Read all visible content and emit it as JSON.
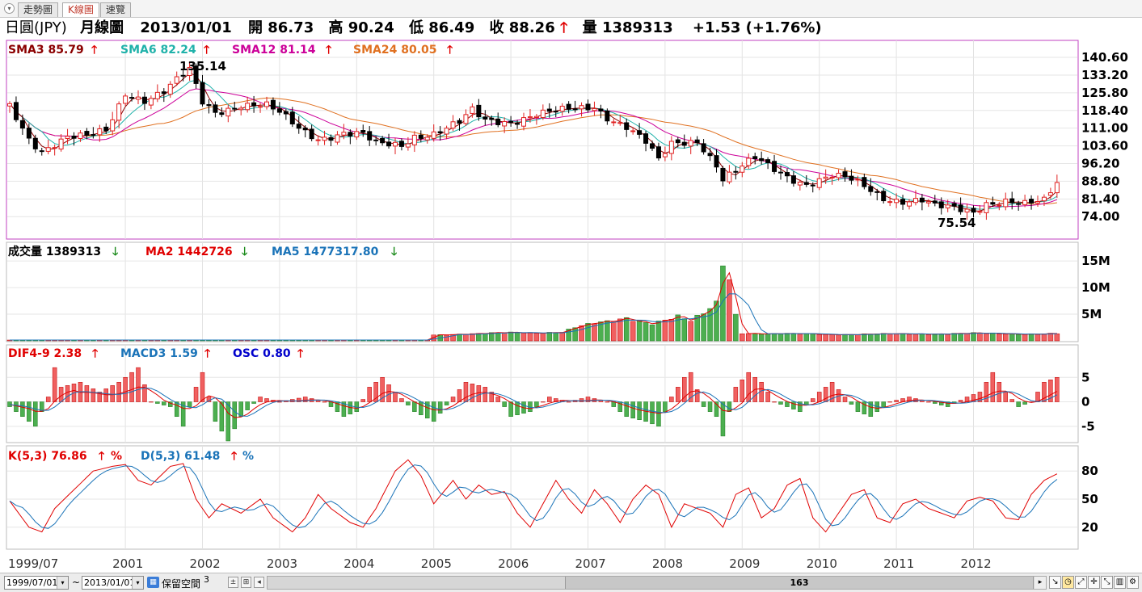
{
  "tabs": [
    {
      "label": "走勢圖",
      "active": false
    },
    {
      "label": "K線圖",
      "active": true
    },
    {
      "label": "速覽",
      "active": false
    }
  ],
  "header": {
    "symbol": "日圓(JPY)",
    "chart_kind": "月線圖",
    "date": "2013/01/01",
    "open_label": "開",
    "open": "86.73",
    "high_label": "高",
    "high": "90.24",
    "low_label": "低",
    "low": "86.49",
    "close_label": "收",
    "close": "88.26",
    "close_arrow": "🡑",
    "volume_label": "量",
    "volume": "1389313",
    "change": "+1.53 (+1.76%)"
  },
  "legends": {
    "price": [
      {
        "text": "SMA3 85.79",
        "color": "#8b0000"
      },
      {
        "text": "SMA6 82.24",
        "color": "#20b2aa"
      },
      {
        "text": "SMA12 81.14",
        "color": "#cc0099"
      },
      {
        "text": "SMA24 80.05",
        "color": "#e07020"
      }
    ],
    "volume": [
      {
        "text": "成交量 1389313",
        "color": "#000000"
      },
      {
        "text": "MA2 1442726",
        "color": "#e00000"
      },
      {
        "text": "MA5 1477317.80",
        "color": "#1a73b8"
      }
    ],
    "macd": [
      {
        "text": "DIF4-9 2.38",
        "color": "#e00000"
      },
      {
        "text": "MACD3 1.59",
        "color": "#1a73b8"
      },
      {
        "text": "OSC 0.80",
        "color": "#0000cc"
      }
    ],
    "kd": [
      {
        "text": "K(5,3) 76.86",
        "color": "#e00000"
      },
      {
        "text": "D(5,3) 61.48",
        "color": "#1a73b8"
      }
    ],
    "up_arrow": "🡑",
    "down_arrow": "🡓",
    "percent": "%"
  },
  "chart_data": {
    "type": "candlestick",
    "price_axis": {
      "ticks": [
        "140.60",
        "133.20",
        "125.80",
        "118.40",
        "111.00",
        "103.60",
        "96.20",
        "88.80",
        "81.40",
        "74.00"
      ],
      "range": [
        68,
        145
      ]
    },
    "annotations": {
      "max_label": "135.14",
      "min_label": "75.54"
    },
    "x_labels": [
      "1999/07",
      "2001",
      "2002",
      "2003",
      "2004",
      "2005",
      "2006",
      "2007",
      "2008",
      "2009",
      "2010",
      "2011",
      "2012"
    ],
    "x_label_months": [
      0,
      18,
      30,
      42,
      54,
      66,
      78,
      90,
      102,
      114,
      126,
      138,
      150
    ],
    "volume_axis": {
      "ticks": [
        "15M",
        "10M",
        "5M"
      ],
      "values": [
        15000000,
        10000000,
        5000000
      ],
      "max": 17000000
    },
    "macd_axis": {
      "ticks": [
        "5",
        "0",
        "-5"
      ],
      "values": [
        5,
        0,
        -5
      ],
      "range": [
        -8,
        9.5
      ]
    },
    "kd_axis": {
      "ticks": [
        "80",
        "50",
        "20"
      ],
      "values": [
        80,
        50,
        20
      ],
      "range": [
        0,
        100
      ]
    },
    "anchors": [
      [
        0,
        120
      ],
      [
        3,
        107
      ],
      [
        5,
        102
      ],
      [
        9,
        107
      ],
      [
        12,
        107
      ],
      [
        15,
        110
      ],
      [
        18,
        126
      ],
      [
        21,
        123
      ],
      [
        24,
        126
      ],
      [
        27,
        133
      ],
      [
        28,
        135
      ],
      [
        30,
        122
      ],
      [
        32,
        118
      ],
      [
        36,
        121
      ],
      [
        40,
        120
      ],
      [
        42,
        117
      ],
      [
        45,
        111
      ],
      [
        48,
        107
      ],
      [
        52,
        109
      ],
      [
        55,
        108
      ],
      [
        57,
        104
      ],
      [
        61,
        104
      ],
      [
        63,
        108
      ],
      [
        66,
        109
      ],
      [
        70,
        113
      ],
      [
        72,
        118
      ],
      [
        74,
        114
      ],
      [
        78,
        114
      ],
      [
        82,
        117
      ],
      [
        86,
        118
      ],
      [
        89,
        119
      ],
      [
        91,
        120
      ],
      [
        93,
        116
      ],
      [
        96,
        112
      ],
      [
        99,
        105
      ],
      [
        101,
        97
      ],
      [
        103,
        104
      ],
      [
        107,
        106
      ],
      [
        108,
        103
      ],
      [
        110,
        96
      ],
      [
        111,
        90
      ],
      [
        113,
        93
      ],
      [
        116,
        98
      ],
      [
        118,
        95
      ],
      [
        121,
        91
      ],
      [
        124,
        88
      ],
      [
        128,
        91
      ],
      [
        131,
        89
      ],
      [
        134,
        85
      ],
      [
        136,
        82
      ],
      [
        139,
        81
      ],
      [
        142,
        81
      ],
      [
        144,
        78
      ],
      [
        147,
        77
      ],
      [
        150,
        76
      ],
      [
        152,
        80
      ],
      [
        155,
        81
      ],
      [
        158,
        79
      ],
      [
        161,
        80
      ],
      [
        163,
        88
      ]
    ],
    "volume_anchors": [
      [
        0,
        150000
      ],
      [
        65,
        150000
      ],
      [
        66,
        1100000
      ],
      [
        70,
        1300000
      ],
      [
        74,
        1400000
      ],
      [
        78,
        1500000
      ],
      [
        82,
        1500000
      ],
      [
        86,
        1700000
      ],
      [
        88,
        2600000
      ],
      [
        91,
        3200000
      ],
      [
        94,
        3600000
      ],
      [
        96,
        4300000
      ],
      [
        98,
        3800000
      ],
      [
        100,
        3400000
      ],
      [
        102,
        4000000
      ],
      [
        104,
        4500000
      ],
      [
        106,
        3600000
      ],
      [
        108,
        5000000
      ],
      [
        110,
        7000000
      ],
      [
        111,
        15000000
      ],
      [
        112,
        12000000
      ],
      [
        113,
        5000000
      ],
      [
        114,
        1500000
      ],
      [
        118,
        1300000
      ],
      [
        125,
        1300000
      ],
      [
        130,
        1200000
      ],
      [
        140,
        1300000
      ],
      [
        150,
        1400000
      ],
      [
        156,
        1300000
      ],
      [
        163,
        1389313
      ]
    ],
    "macd_osc_anchors": [
      [
        0,
        -1
      ],
      [
        2,
        -3
      ],
      [
        4,
        -5
      ],
      [
        6,
        1
      ],
      [
        7,
        7
      ],
      [
        8,
        3
      ],
      [
        11,
        4
      ],
      [
        14,
        2
      ],
      [
        17,
        4
      ],
      [
        19,
        6
      ],
      [
        20,
        7
      ],
      [
        22,
        0
      ],
      [
        25,
        -1
      ],
      [
        27,
        -5
      ],
      [
        29,
        3
      ],
      [
        30,
        6
      ],
      [
        32,
        -4
      ],
      [
        34,
        -8
      ],
      [
        36,
        -3
      ],
      [
        39,
        1
      ],
      [
        42,
        0
      ],
      [
        46,
        1
      ],
      [
        49,
        0
      ],
      [
        52,
        -3
      ],
      [
        54,
        -2
      ],
      [
        56,
        3
      ],
      [
        58,
        5
      ],
      [
        60,
        2
      ],
      [
        63,
        -2
      ],
      [
        66,
        -4
      ],
      [
        69,
        1
      ],
      [
        71,
        4
      ],
      [
        74,
        3
      ],
      [
        76,
        1
      ],
      [
        78,
        -3
      ],
      [
        81,
        -2
      ],
      [
        84,
        1
      ],
      [
        87,
        0
      ],
      [
        90,
        1
      ],
      [
        93,
        0
      ],
      [
        96,
        -3
      ],
      [
        99,
        -4
      ],
      [
        101,
        -5
      ],
      [
        103,
        1
      ],
      [
        105,
        5
      ],
      [
        106,
        6
      ],
      [
        108,
        -1
      ],
      [
        110,
        -3
      ],
      [
        111,
        -7
      ],
      [
        113,
        3
      ],
      [
        115,
        6
      ],
      [
        117,
        4
      ],
      [
        119,
        0
      ],
      [
        121,
        -1
      ],
      [
        123,
        -2
      ],
      [
        126,
        2
      ],
      [
        128,
        4
      ],
      [
        130,
        1
      ],
      [
        132,
        -2
      ],
      [
        134,
        -3
      ],
      [
        137,
        0
      ],
      [
        140,
        1
      ],
      [
        143,
        0
      ],
      [
        146,
        -1
      ],
      [
        149,
        1
      ],
      [
        151,
        2
      ],
      [
        153,
        6
      ],
      [
        155,
        2
      ],
      [
        157,
        -1
      ],
      [
        159,
        0
      ],
      [
        161,
        4
      ],
      [
        163,
        5
      ]
    ],
    "k_anchors": [
      [
        0,
        48
      ],
      [
        3,
        20
      ],
      [
        5,
        15
      ],
      [
        7,
        40
      ],
      [
        10,
        60
      ],
      [
        13,
        80
      ],
      [
        16,
        85
      ],
      [
        18,
        87
      ],
      [
        20,
        70
      ],
      [
        22,
        65
      ],
      [
        25,
        85
      ],
      [
        27,
        88
      ],
      [
        29,
        50
      ],
      [
        31,
        30
      ],
      [
        33,
        45
      ],
      [
        36,
        35
      ],
      [
        39,
        50
      ],
      [
        41,
        30
      ],
      [
        44,
        15
      ],
      [
        46,
        30
      ],
      [
        48,
        55
      ],
      [
        50,
        40
      ],
      [
        53,
        25
      ],
      [
        55,
        20
      ],
      [
        57,
        40
      ],
      [
        60,
        80
      ],
      [
        62,
        92
      ],
      [
        64,
        75
      ],
      [
        66,
        45
      ],
      [
        69,
        70
      ],
      [
        71,
        50
      ],
      [
        73,
        65
      ],
      [
        75,
        55
      ],
      [
        77,
        58
      ],
      [
        79,
        35
      ],
      [
        81,
        20
      ],
      [
        83,
        45
      ],
      [
        85,
        70
      ],
      [
        87,
        50
      ],
      [
        89,
        35
      ],
      [
        91,
        60
      ],
      [
        93,
        45
      ],
      [
        95,
        25
      ],
      [
        97,
        50
      ],
      [
        99,
        65
      ],
      [
        101,
        55
      ],
      [
        103,
        20
      ],
      [
        105,
        45
      ],
      [
        107,
        40
      ],
      [
        109,
        35
      ],
      [
        111,
        20
      ],
      [
        113,
        55
      ],
      [
        115,
        62
      ],
      [
        117,
        30
      ],
      [
        119,
        40
      ],
      [
        121,
        65
      ],
      [
        123,
        72
      ],
      [
        125,
        30
      ],
      [
        127,
        15
      ],
      [
        129,
        35
      ],
      [
        131,
        55
      ],
      [
        133,
        60
      ],
      [
        135,
        30
      ],
      [
        137,
        25
      ],
      [
        139,
        45
      ],
      [
        141,
        50
      ],
      [
        143,
        40
      ],
      [
        145,
        35
      ],
      [
        147,
        30
      ],
      [
        149,
        48
      ],
      [
        151,
        52
      ],
      [
        153,
        48
      ],
      [
        155,
        30
      ],
      [
        157,
        28
      ],
      [
        159,
        55
      ],
      [
        161,
        70
      ],
      [
        163,
        77
      ]
    ]
  }
}
